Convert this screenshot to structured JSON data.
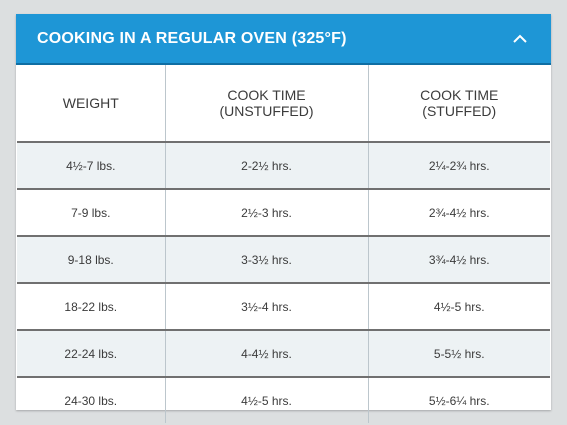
{
  "header": {
    "title": "COOKING IN A REGULAR OVEN (325°F)",
    "toggle_icon": "chevron-up-icon"
  },
  "table": {
    "columns": [
      {
        "line1": "WEIGHT",
        "line2": ""
      },
      {
        "line1": "COOK TIME",
        "line2": "(UNSTUFFED)"
      },
      {
        "line1": "COOK TIME",
        "line2": "(STUFFED)"
      }
    ],
    "rows": [
      [
        "4½-7 lbs.",
        "2-2½ hrs.",
        "2¼-2¾ hrs."
      ],
      [
        "7-9 lbs.",
        "2½-3 hrs.",
        "2¾-4½ hrs."
      ],
      [
        "9-18 lbs.",
        "3-3½ hrs.",
        "3¾-4½ hrs."
      ],
      [
        "18-22 lbs.",
        "3½-4 hrs.",
        "4½-5 hrs."
      ],
      [
        "22-24 lbs.",
        "4-4½ hrs.",
        "5-5½ hrs."
      ],
      [
        "24-30 lbs.",
        "4½-5 hrs.",
        "5½-6¼ hrs."
      ]
    ]
  },
  "colors": {
    "header_bg": "#1e96d6",
    "row_shade": "#edf2f4"
  }
}
